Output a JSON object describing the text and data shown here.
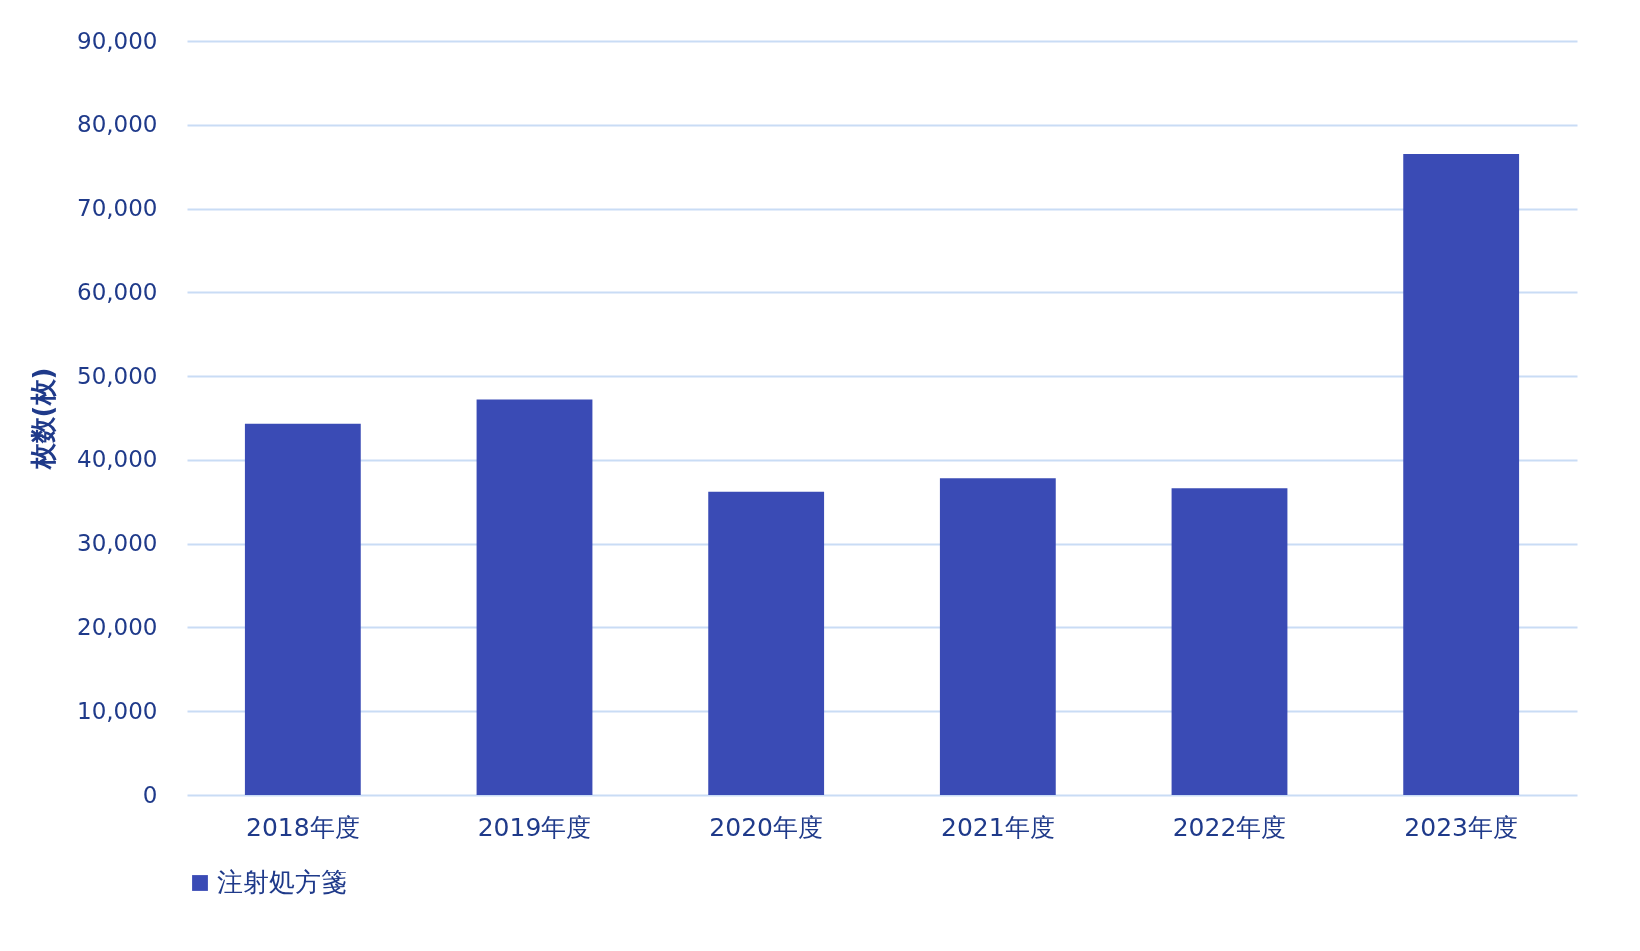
{
  "chart_data": {
    "type": "bar",
    "ylabel": "枚数(枚)",
    "categories": [
      "2018年度",
      "2019年度",
      "2020年度",
      "2021年度",
      "2022年度",
      "2023年度"
    ],
    "series": [
      {
        "name": "注射処方箋",
        "color": "#3a4bb5",
        "values": [
          44300,
          47200,
          36200,
          37800,
          36600,
          76500
        ]
      }
    ],
    "ylim": [
      0,
      90000
    ],
    "yticks": [
      {
        "value": 0,
        "label": "0"
      },
      {
        "value": 10000,
        "label": "10,000"
      },
      {
        "value": 20000,
        "label": "20,000"
      },
      {
        "value": 30000,
        "label": "30,000"
      },
      {
        "value": 40000,
        "label": "40,000"
      },
      {
        "value": 50000,
        "label": "50,000"
      },
      {
        "value": 60000,
        "label": "60,000"
      },
      {
        "value": 70000,
        "label": "70,000"
      },
      {
        "value": 80000,
        "label": "80,000"
      },
      {
        "value": 90000,
        "label": "90,000"
      }
    ],
    "grid": "y",
    "legend": "bottom"
  }
}
